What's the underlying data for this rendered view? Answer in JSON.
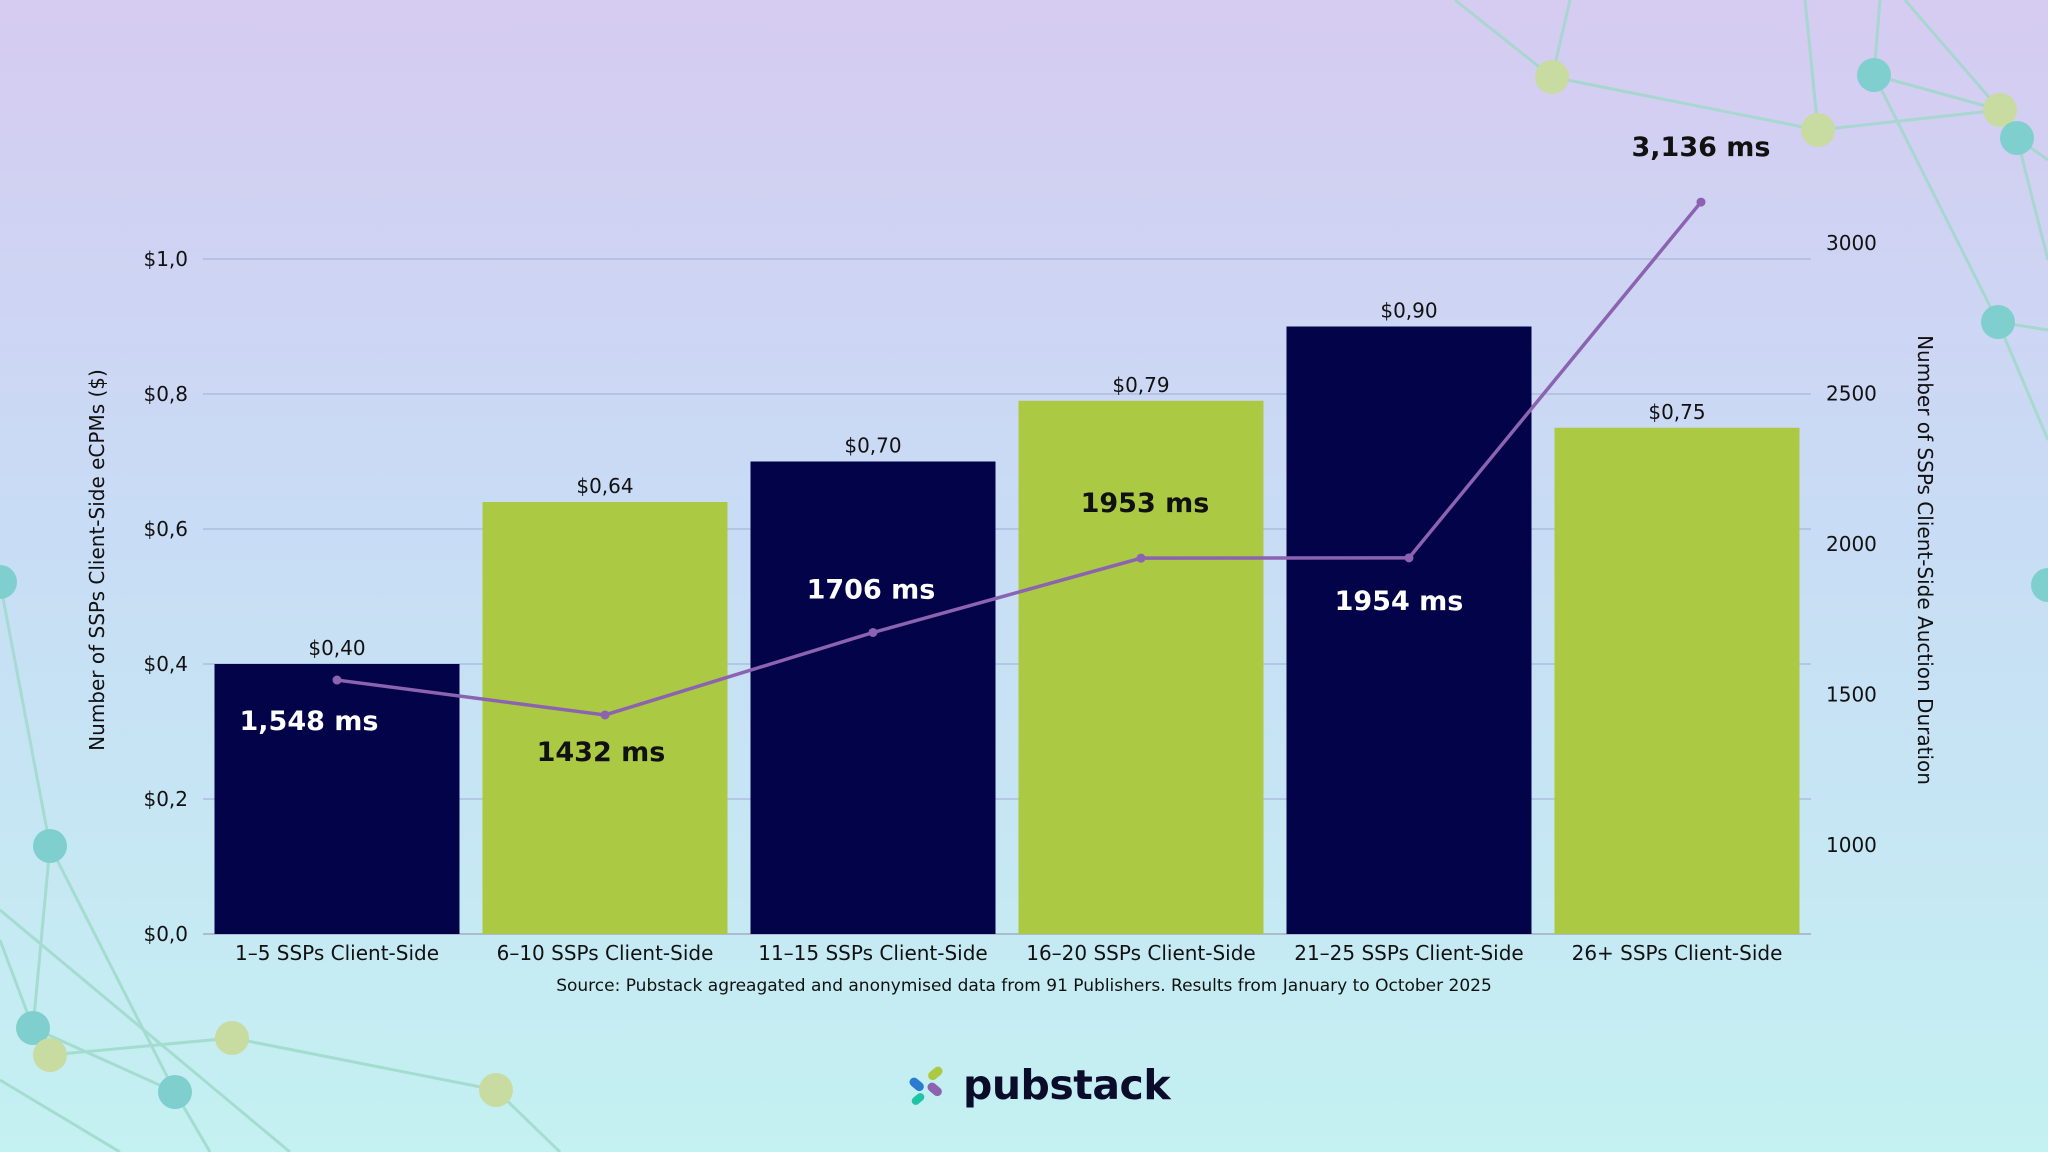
{
  "chart_data": {
    "type": "bar+line",
    "categories": [
      "1–5 SSPs Client-Side",
      "6–10 SSPs Client-Side",
      "11–15 SSPs Client-Side",
      "16–20 SSPs Client-Side",
      "21–25 SSPs Client-Side",
      "26+ SSPs Client-Side"
    ],
    "bar_series": {
      "values": [
        0.4,
        0.64,
        0.7,
        0.79,
        0.9,
        0.75
      ],
      "labels": [
        "$0,40",
        "$0,64",
        "$0,70",
        "$0,79",
        "$0,90",
        "$0,75"
      ],
      "colors": [
        "#03034a",
        "#abc943",
        "#03034a",
        "#abc943",
        "#03034a",
        "#abc943"
      ]
    },
    "line_series": {
      "values": [
        1548,
        1432,
        1706,
        1953,
        1954,
        3136
      ],
      "labels": [
        "1,548 ms",
        "1432 ms",
        "1706 ms",
        "1953 ms",
        "1954 ms",
        "3,136 ms"
      ],
      "label_colors": [
        "#ffffff",
        "#111111",
        "#ffffff",
        "#111111",
        "#ffffff",
        "#111111"
      ],
      "color": "#8b63b0"
    },
    "ylabel_left": "Number of SSPs Client-Side eCPMs ($)",
    "ylabel_right": "Number of SSPs Client-Side Auction Duration",
    "ylim_left": [
      0,
      1.0
    ],
    "yticks_left": [
      "$0,0",
      "$0,2",
      "$0,4",
      "$0,6",
      "$0,8",
      "$1,0"
    ],
    "yticks_right": [
      "1000",
      "1500",
      "2000",
      "2500",
      "3000"
    ],
    "grid": true
  },
  "source_note": "Source: Pubstack agreagated and anonymised data from 91 Publishers. Results from January to October 2025",
  "logo": {
    "text": "pubstack"
  },
  "colors": {
    "navy": "#03034a",
    "lime": "#abc943",
    "line": "#8b63b0",
    "node_teal": "#7fcfcf",
    "node_lime": "#c8dba0"
  }
}
